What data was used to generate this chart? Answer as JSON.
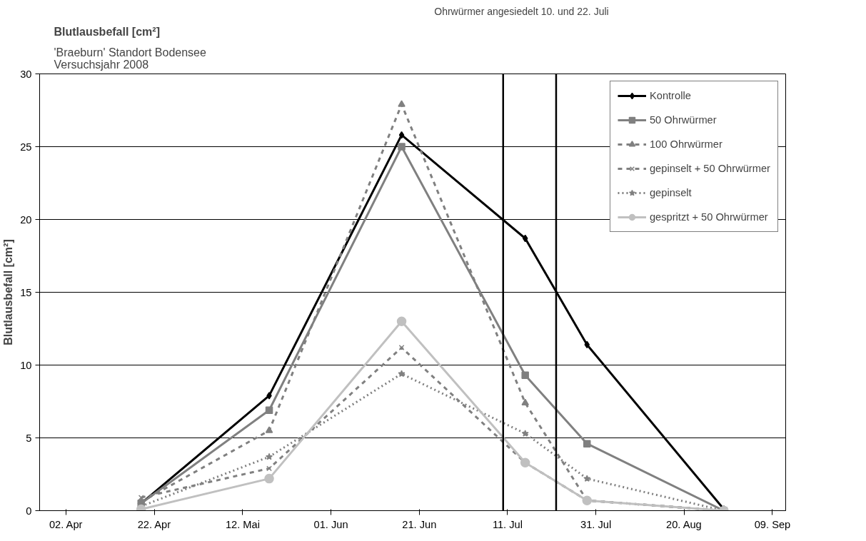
{
  "chart_data": {
    "type": "line",
    "title": "Blutlausbefall [cm²]",
    "subtitle": "'Braeburn' Standort Bodensee\nVersuchsjahr 2008",
    "ylabel": "Blutlausbefall [cm²]",
    "x": [
      "2008-04-19",
      "2008-05-18",
      "2008-06-17",
      "2008-07-15",
      "2008-07-29",
      "2008-08-29"
    ],
    "series": [
      {
        "name": "Kontrolle",
        "color": "#000000",
        "marker": "diamond",
        "line_style": "solid",
        "values": [
          0.5,
          7.9,
          25.8,
          18.7,
          11.4,
          0.1
        ]
      },
      {
        "name": "50 Ohrwürmer",
        "color": "#808080",
        "marker": "square",
        "line_style": "solid",
        "values": [
          0.5,
          6.9,
          25.0,
          9.3,
          4.6,
          0.0
        ]
      },
      {
        "name": "100 Ohrwürmer",
        "color": "#808080",
        "marker": "triangle",
        "line_style": "dashed",
        "values": [
          0.6,
          5.5,
          27.9,
          7.4,
          0.7,
          0.0
        ]
      },
      {
        "name": "gepinselt + 50 Ohrwürmer",
        "color": "#808080",
        "marker": "cross",
        "line_style": "dashed",
        "values": [
          0.9,
          2.9,
          11.2,
          3.3,
          0.7,
          0.0
        ]
      },
      {
        "name": "gepinselt",
        "color": "#808080",
        "marker": "star",
        "line_style": "dotted",
        "values": [
          0.3,
          3.7,
          9.4,
          5.3,
          2.2,
          0.0
        ]
      },
      {
        "name": "gespritzt + 50 Ohrwürmer",
        "color": "#c0c0c0",
        "marker": "circle",
        "line_style": "solid",
        "values": [
          0.1,
          2.2,
          13.0,
          3.3,
          0.7,
          0.0
        ]
      }
    ],
    "ref_lines": [
      {
        "axis": "x",
        "value": "2008-07-10",
        "color": "#000000"
      },
      {
        "axis": "x",
        "value": "2008-07-22",
        "color": "#000000"
      }
    ],
    "annotations": [
      "Ohrwürmer angesiedelt 10. und 22. Juli"
    ],
    "xlim": [
      "2008-03-27",
      "2008-09-12"
    ],
    "xticks": [
      {
        "value": "2008-04-02",
        "label": "02. Apr"
      },
      {
        "value": "2008-04-22",
        "label": "22. Apr"
      },
      {
        "value": "2008-05-12",
        "label": "12. Mai"
      },
      {
        "value": "2008-06-01",
        "label": "01. Jun"
      },
      {
        "value": "2008-06-21",
        "label": "21. Jun"
      },
      {
        "value": "2008-07-11",
        "label": "11. Jul"
      },
      {
        "value": "2008-07-31",
        "label": "31. Jul"
      },
      {
        "value": "2008-08-20",
        "label": "20. Aug"
      },
      {
        "value": "2008-09-09",
        "label": "09. Sep"
      }
    ],
    "ylim": [
      0,
      30
    ],
    "yticks": [
      0,
      5,
      10,
      15,
      20,
      25,
      30
    ],
    "grid": "y",
    "legend": "top right"
  }
}
